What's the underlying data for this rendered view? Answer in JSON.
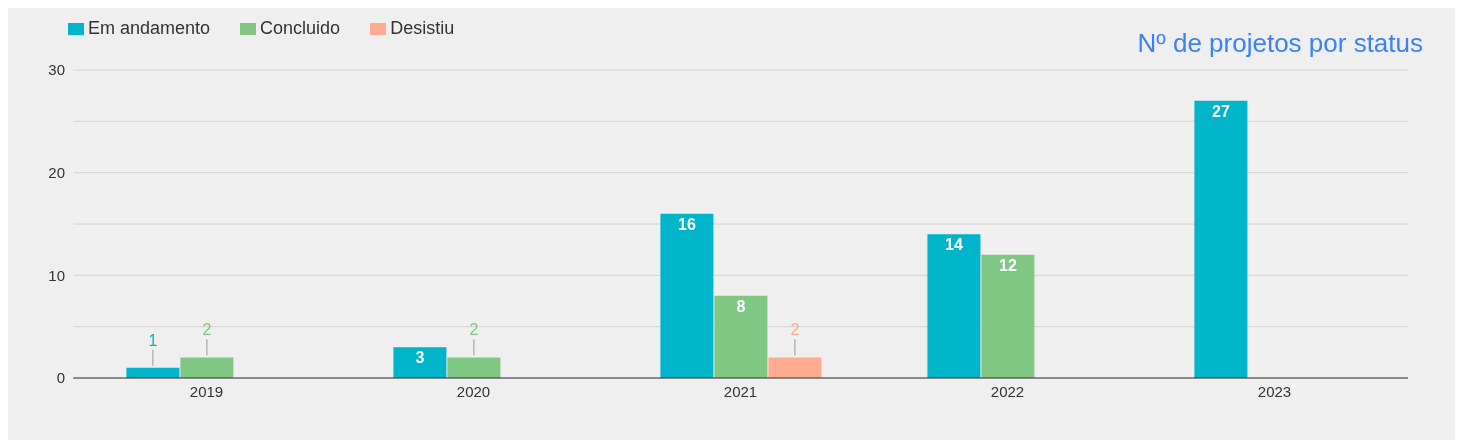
{
  "chart_data": {
    "type": "bar",
    "title": "Nº de projetos por status",
    "categories": [
      "2019",
      "2020",
      "2021",
      "2022",
      "2023"
    ],
    "series": [
      {
        "name": "Em andamento",
        "color": "#00b5c9",
        "values": [
          1,
          3,
          16,
          14,
          27
        ]
      },
      {
        "name": "Concluido",
        "color": "#81c784",
        "values": [
          2,
          2,
          8,
          12,
          null
        ]
      },
      {
        "name": "Desistiu",
        "color": "#ffab91",
        "values": [
          null,
          null,
          2,
          null,
          null
        ]
      }
    ],
    "ylim": [
      0,
      30
    ],
    "yticks": [
      0,
      {
        "value": 5,
        "label": null
      },
      10,
      {
        "value": 15,
        "label": null
      },
      20,
      {
        "value": 25,
        "label": null
      },
      30
    ],
    "grid": "y",
    "legend": "top left",
    "data_labels": true
  }
}
